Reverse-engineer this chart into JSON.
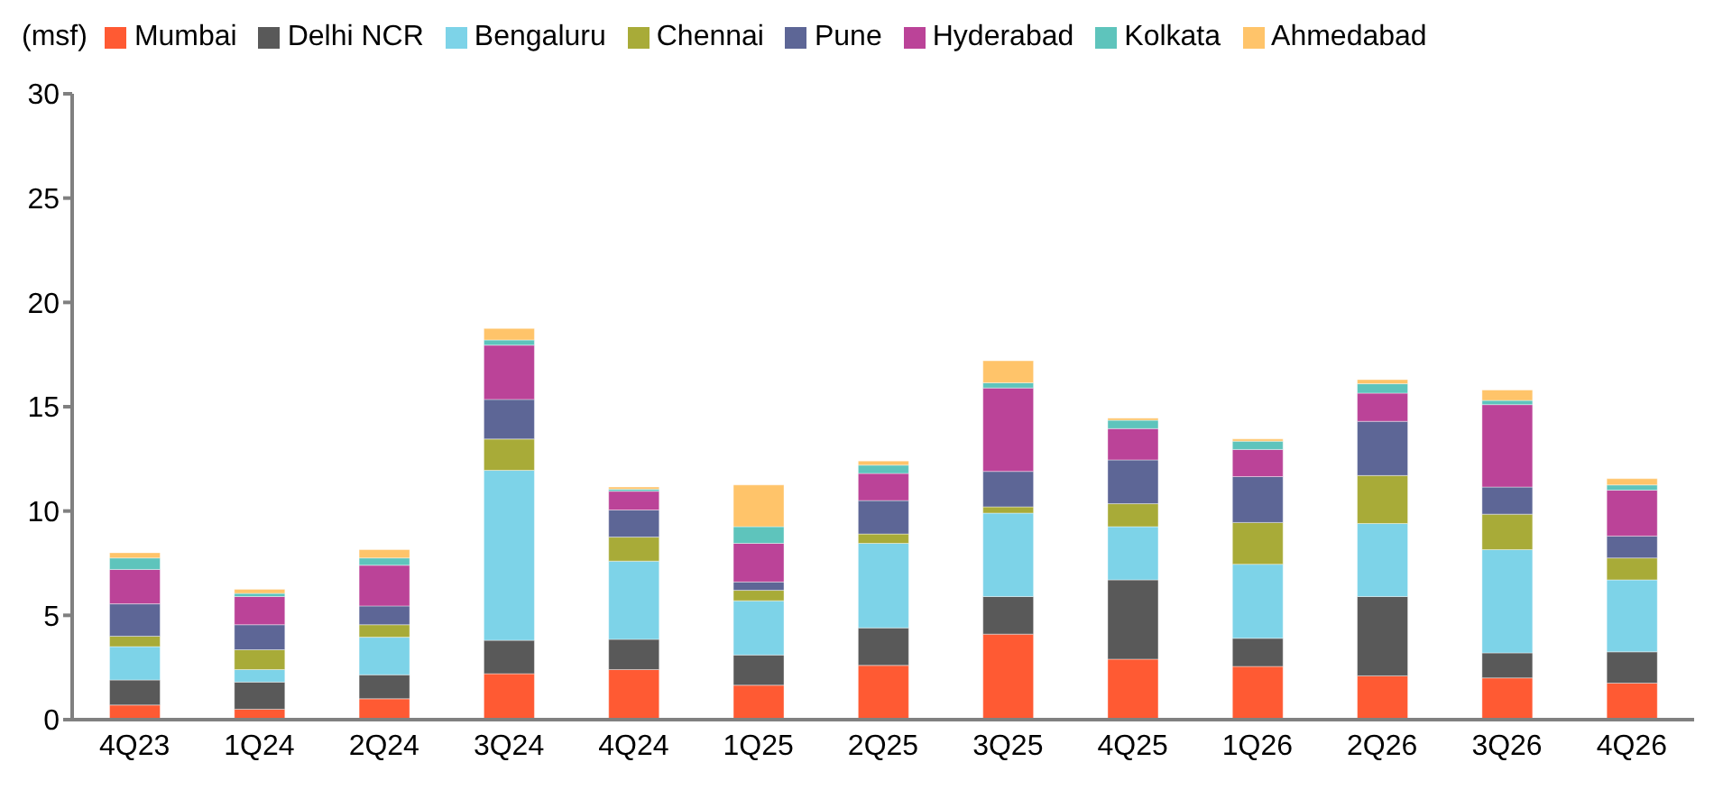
{
  "chart_data": {
    "type": "bar",
    "stacked": true,
    "ylabel": "(msf)",
    "legend": "top left",
    "grid": false,
    "categories": [
      "4Q23",
      "1Q24",
      "2Q24",
      "3Q24",
      "4Q24",
      "1Q25",
      "2Q25",
      "3Q25",
      "4Q25",
      "1Q26",
      "2Q26",
      "3Q26",
      "4Q26"
    ],
    "ylim": [
      0,
      30
    ],
    "yticks": [
      0,
      5,
      10,
      15,
      20,
      25,
      30
    ],
    "series": [
      {
        "name": "Mumbai",
        "color": "#ff5a33",
        "values": [
          0.7,
          0.5,
          1.0,
          2.2,
          2.4,
          1.65,
          2.6,
          4.1,
          2.9,
          2.55,
          2.1,
          2.0,
          1.75
        ]
      },
      {
        "name": "Delhi NCR",
        "color": "#595959",
        "values": [
          1.2,
          1.3,
          1.15,
          1.6,
          1.45,
          1.45,
          1.8,
          1.8,
          3.8,
          1.35,
          3.8,
          1.2,
          1.5
        ]
      },
      {
        "name": "Bengaluru",
        "color": "#7dd3e8",
        "values": [
          1.6,
          0.6,
          1.8,
          8.15,
          3.75,
          2.6,
          4.05,
          4.0,
          2.55,
          3.55,
          3.5,
          4.95,
          3.45
        ]
      },
      {
        "name": "Chennai",
        "color": "#a8ab38",
        "values": [
          0.5,
          0.95,
          0.6,
          1.5,
          1.15,
          0.5,
          0.45,
          0.3,
          1.1,
          2.0,
          2.3,
          1.7,
          1.05
        ]
      },
      {
        "name": "Pune",
        "color": "#5d6696",
        "values": [
          1.55,
          1.2,
          0.9,
          1.9,
          1.3,
          0.4,
          1.6,
          1.7,
          2.1,
          2.2,
          2.6,
          1.3,
          1.05
        ]
      },
      {
        "name": "Hyderabad",
        "color": "#bb4398",
        "values": [
          1.65,
          1.35,
          1.95,
          2.6,
          0.9,
          1.85,
          1.3,
          4.0,
          1.5,
          1.3,
          1.35,
          3.95,
          2.2
        ]
      },
      {
        "name": "Kolkata",
        "color": "#5ec4bc",
        "values": [
          0.55,
          0.15,
          0.35,
          0.25,
          0.1,
          0.8,
          0.4,
          0.25,
          0.4,
          0.4,
          0.45,
          0.2,
          0.25
        ]
      },
      {
        "name": "Ahmedabad",
        "color": "#ffc46a",
        "values": [
          0.25,
          0.2,
          0.4,
          0.55,
          0.1,
          2.0,
          0.2,
          1.05,
          0.1,
          0.1,
          0.2,
          0.5,
          0.3
        ]
      }
    ]
  }
}
